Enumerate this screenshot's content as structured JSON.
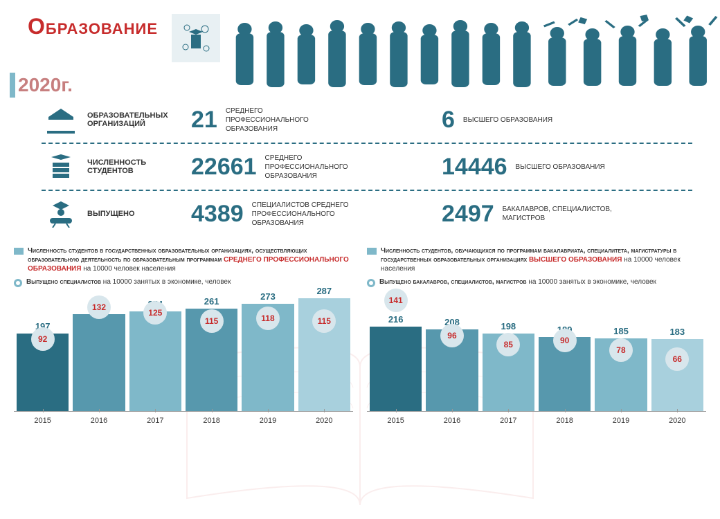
{
  "title": "Образование",
  "year": "2020г.",
  "colors": {
    "accent_red": "#c72c2c",
    "teal_dark": "#2a6d82",
    "teal_med": "#5798ad",
    "teal_light": "#7fb8c9",
    "teal_pale": "#a8d0dd",
    "bubble_bg": "#d8e6ec",
    "text": "#333333"
  },
  "stats": [
    {
      "label": "образовательных организаций",
      "left_num": "21",
      "left_desc": "среднего профессионального образования",
      "right_num": "6",
      "right_desc": "высшего образования"
    },
    {
      "label": "численность студентов",
      "left_num": "22661",
      "left_desc": "среднего профессионального образования",
      "right_num": "14446",
      "right_desc": "высшего образования"
    },
    {
      "label": "выпущено",
      "left_num": "4389",
      "left_desc": "специалистов среднего профессионального образования",
      "right_num": "2497",
      "right_desc": "бакалавров, специалистов, магистров"
    }
  ],
  "charts": [
    {
      "legend1_prefix": "Численность студентов в государственных образовательных организациях, осуществляющих образовательную деятельность по образовательным программам ",
      "legend1_red": "среднего профессионального образования",
      "legend1_suffix": "      на 10000 человек населения",
      "legend2_bold": "Выпущено специалистов",
      "legend2_rest": "      на 10000 занятых в экономике, человек",
      "years": [
        "2015",
        "2016",
        "2017",
        "2018",
        "2019",
        "2020"
      ],
      "bar_values": [
        197,
        247,
        254,
        261,
        273,
        287
      ],
      "bar_colors": [
        "#2a6d82",
        "#5798ad",
        "#7fb8c9",
        "#5798ad",
        "#7fb8c9",
        "#a8d0dd"
      ],
      "bubble_values": [
        92,
        132,
        125,
        115,
        118,
        115
      ],
      "y_max": 300,
      "bubble_max": 150
    },
    {
      "legend1_prefix": "Численность студентов, обучающихся по программам бакалавриата, специалитета, магистратуры в государственных образовательных организациях ",
      "legend1_red": "высшего образования",
      "legend1_suffix": "\nна 10000 человек населения",
      "legend2_bold": "Выпущено бакалавров, специалистов, магистров",
      "legend2_rest": "\nна 10000 занятых в экономике, человек",
      "years": [
        "2015",
        "2016",
        "2017",
        "2018",
        "2019",
        "2020"
      ],
      "bar_values": [
        216,
        208,
        198,
        189,
        185,
        183
      ],
      "bar_colors": [
        "#2a6d82",
        "#5798ad",
        "#7fb8c9",
        "#5798ad",
        "#7fb8c9",
        "#a8d0dd"
      ],
      "bubble_values": [
        141,
        96,
        85,
        90,
        78,
        66
      ],
      "y_max": 300,
      "bubble_max": 150
    }
  ]
}
